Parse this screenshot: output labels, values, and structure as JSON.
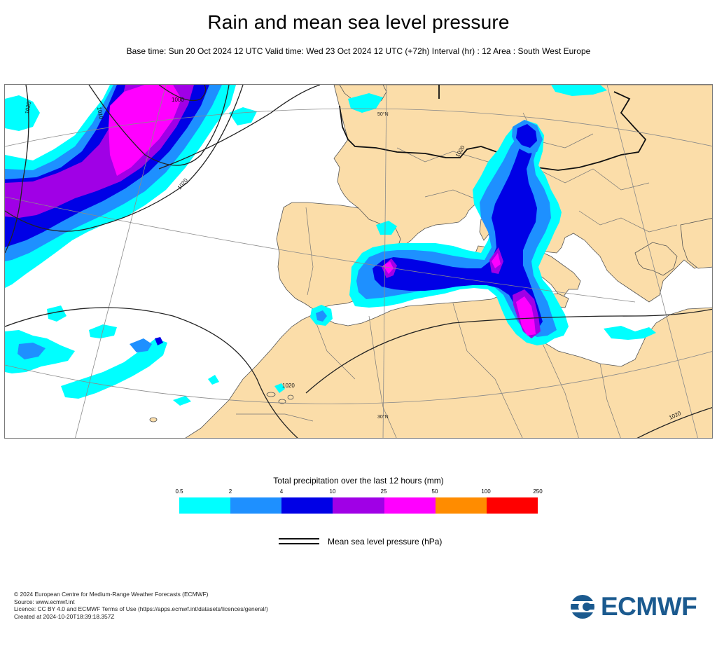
{
  "header": {
    "title": "Rain and mean sea level pressure",
    "subtitle": "Base time: Sun 20 Oct 2024 12 UTC Valid time: Wed 23 Oct 2024 12 UTC (+72h) Interval (hr) : 12 Area : South West Europe"
  },
  "map": {
    "isobar_labels": [
      "1020",
      "1010",
      "1000",
      "1020",
      "1020",
      "1020",
      "1020"
    ],
    "lat_labels": [
      "50°N",
      "30°N"
    ],
    "colors": {
      "land": "#fbdda9",
      "sea": "#ffffff",
      "coast": "#444444",
      "border": "#111111"
    }
  },
  "legend": {
    "title": "Total precipitation over the last 12 hours (mm)",
    "ticks": [
      "0.5",
      "2",
      "4",
      "10",
      "25",
      "50",
      "100",
      "250"
    ],
    "colors": [
      "#00ffff",
      "#1e90ff",
      "#0000e6",
      "#a000e6",
      "#ff00ff",
      "#ff8c00",
      "#ff0000"
    ],
    "mslp_label": "Mean sea level pressure (hPa)"
  },
  "footer": {
    "lines": [
      "© 2024 European Centre for Medium-Range Weather Forecasts (ECMWF)",
      "Source: www.ecmwf.int",
      "Licence: CC BY 4.0 and ECMWF Terms of Use (https://apps.ecmwf.int/datasets/licences/general/)",
      "Created at 2024-10-20T18:39:18.357Z"
    ],
    "logo_text": "ECMWF"
  }
}
